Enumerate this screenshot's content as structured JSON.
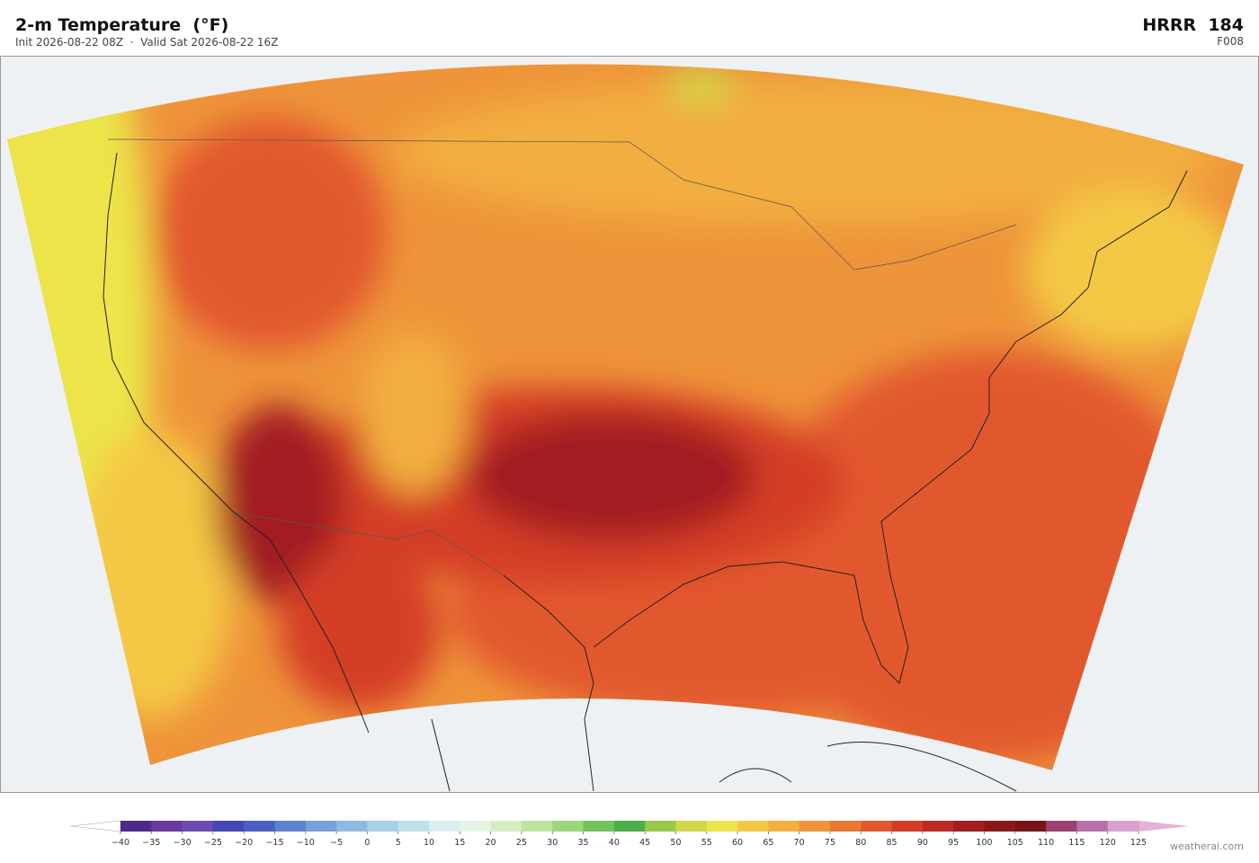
{
  "header": {
    "title": "2-m Temperature  (°F)",
    "subtitle": "Init 2026-08-22 08Z  ·  Valid Sat 2026-08-22 16Z",
    "model": "HRRR  184",
    "forecast_hour": "F008"
  },
  "colorbar": {
    "ticks": [
      {
        "value": -40,
        "label": "−40"
      },
      {
        "value": -35,
        "label": "−35"
      },
      {
        "value": -30,
        "label": "−30"
      },
      {
        "value": -25,
        "label": "−25"
      },
      {
        "value": -20,
        "label": "−20"
      },
      {
        "value": -15,
        "label": "−15"
      },
      {
        "value": -10,
        "label": "−10"
      },
      {
        "value": -5,
        "label": "−5"
      },
      0,
      5,
      10,
      15,
      20,
      25,
      30,
      35,
      40,
      45,
      50,
      55,
      60,
      65,
      70,
      75,
      80,
      85,
      90,
      95,
      100,
      105,
      110,
      115,
      120,
      125
    ],
    "colors": [
      "#4b2a8c",
      "#6a3a9e",
      "#6c4bb0",
      "#4347b8",
      "#4a5fc4",
      "#5d82cf",
      "#76a0d8",
      "#8fbadf",
      "#a8d0e6",
      "#c0e0ec",
      "#d8eef0",
      "#e6f4e6",
      "#d6edc4",
      "#bde39c",
      "#9cd67c",
      "#74c25c",
      "#4caf48",
      "#98c84a",
      "#cfd84a",
      "#ece44a",
      "#f4c844",
      "#f2ae40",
      "#ee943a",
      "#e87834",
      "#e2582e",
      "#d43c28",
      "#bc2a24",
      "#a21e20",
      "#8a1818",
      "#781418",
      "#9c4070",
      "#b870a8",
      "#d8a0cc"
    ],
    "extend_colors": [
      "#ffffff",
      "#e2b2d8"
    ]
  },
  "credit": "weatherai.com"
}
